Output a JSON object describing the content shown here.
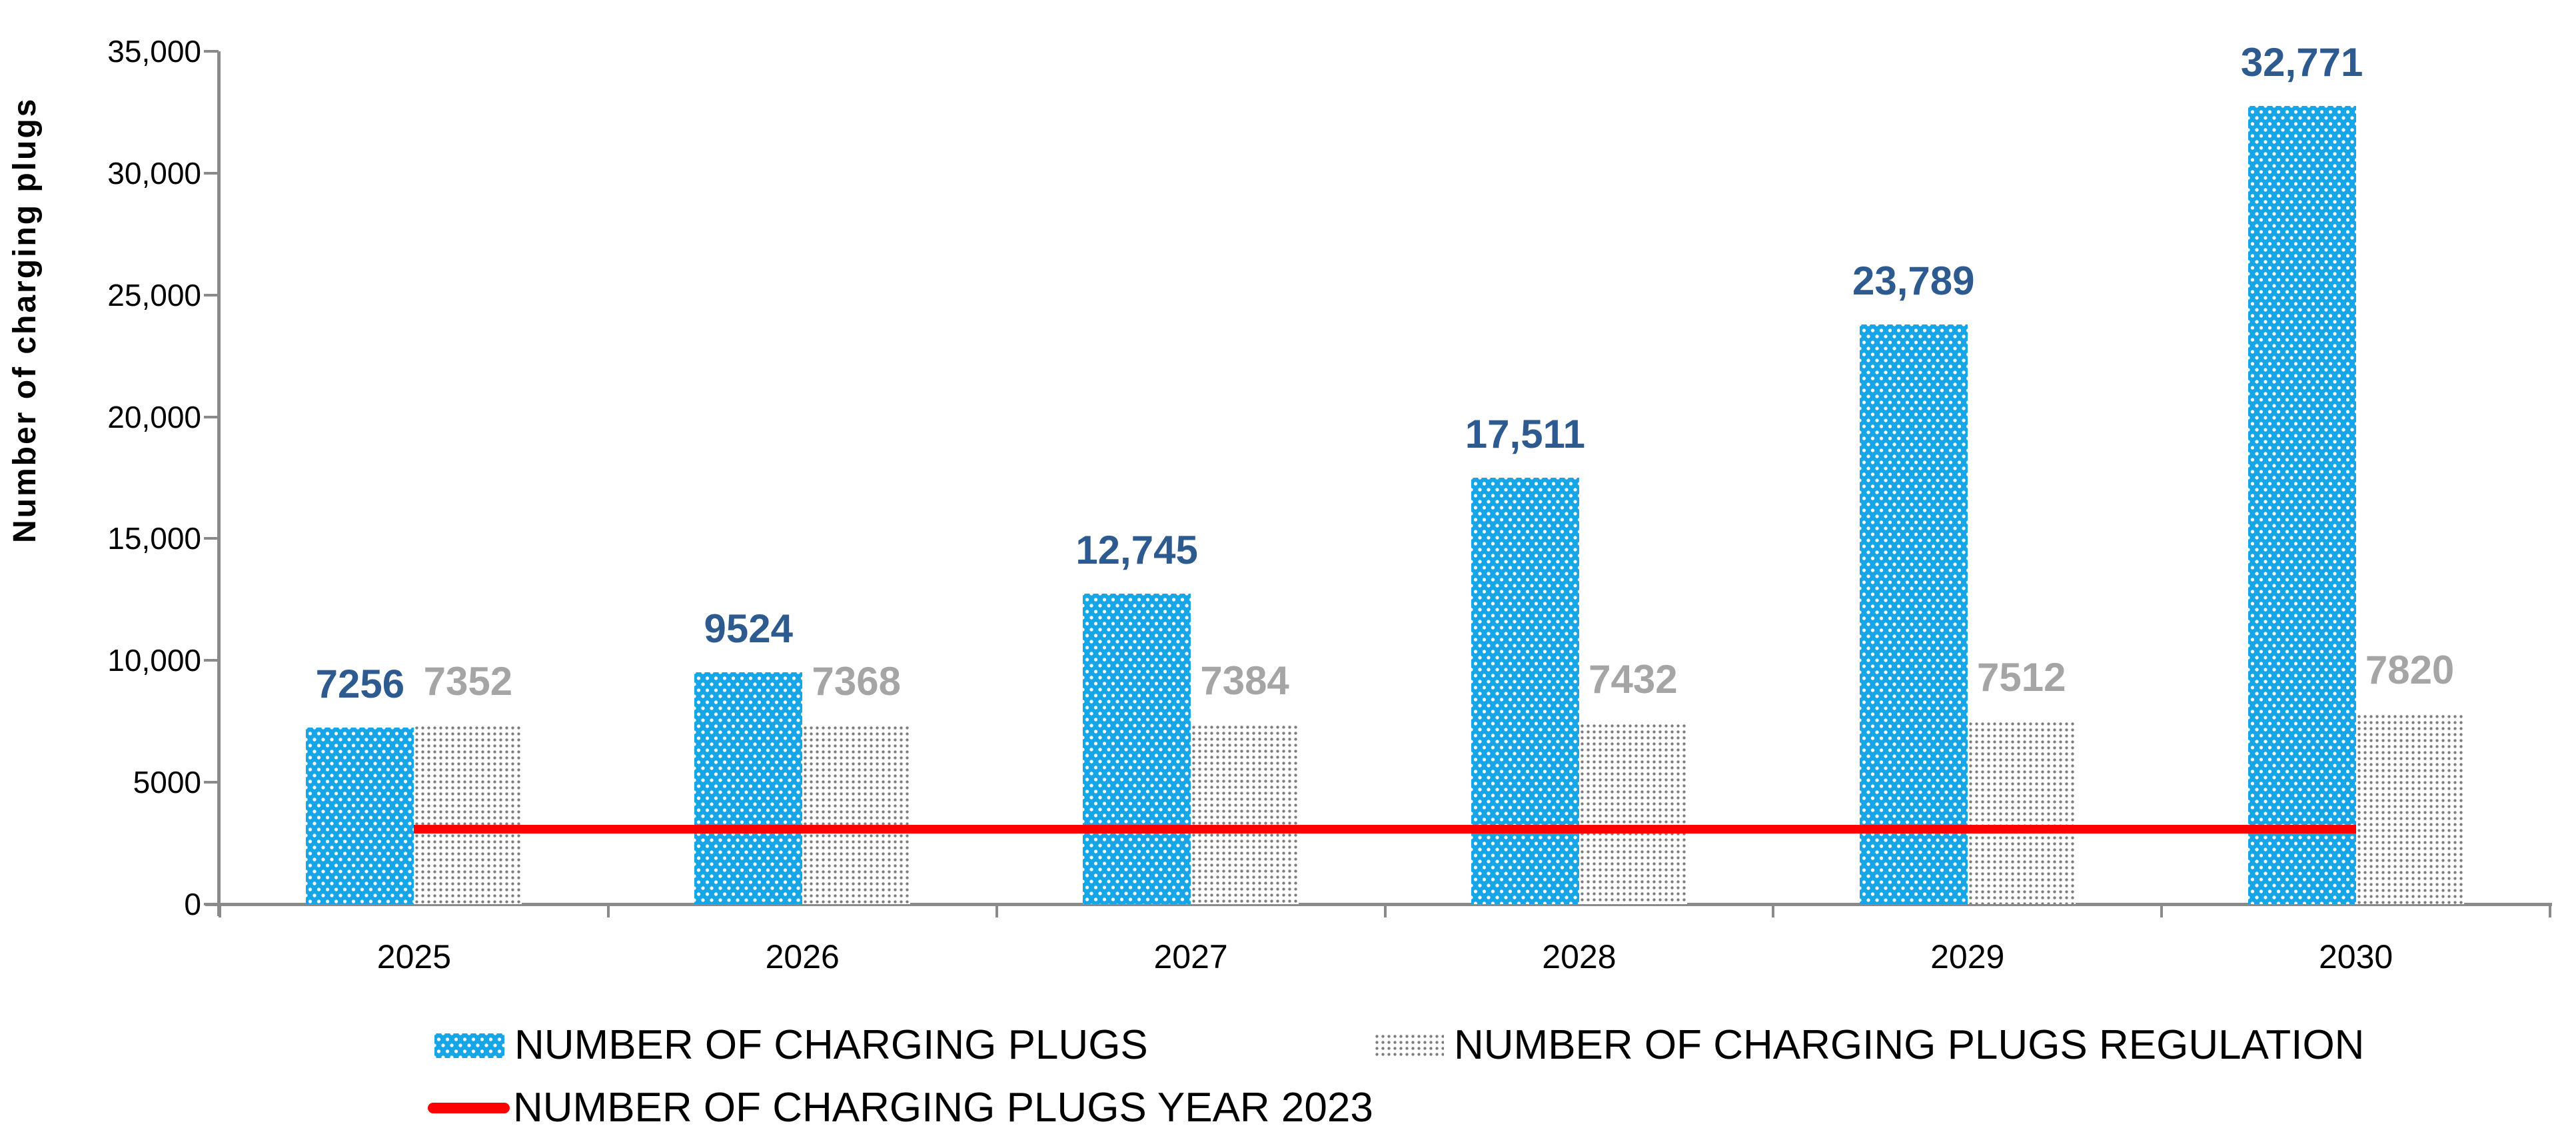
{
  "chart_data": {
    "type": "bar",
    "title": "",
    "xlabel": "",
    "ylabel": "Number of charging plugs",
    "ylim": [
      0,
      35000
    ],
    "grid": false,
    "legend_position": "bottom-left",
    "y_ticks": [
      {
        "value": 0,
        "label": "0"
      },
      {
        "value": 5000,
        "label": "5000"
      },
      {
        "value": 10000,
        "label": "10,000"
      },
      {
        "value": 15000,
        "label": "15,000"
      },
      {
        "value": 20000,
        "label": "20,000"
      },
      {
        "value": 25000,
        "label": "25,000"
      },
      {
        "value": 30000,
        "label": "30,000"
      },
      {
        "value": 35000,
        "label": "35,000"
      }
    ],
    "categories": [
      "2025",
      "2026",
      "2027",
      "2028",
      "2029",
      "2030"
    ],
    "series": [
      {
        "name": "NUMBER OF CHARGING PLUGS",
        "type": "bar",
        "fill": "blue-dotted",
        "values": [
          7256,
          9524,
          12745,
          17511,
          23789,
          32771
        ],
        "labels": [
          "7256",
          "9524",
          "12,745",
          "17,511",
          "23,789",
          "32,771"
        ]
      },
      {
        "name": "NUMBER OF CHARGING PLUGS REGULATION",
        "type": "bar",
        "fill": "gray-dotted",
        "values": [
          7352,
          7368,
          7384,
          7432,
          7512,
          7820
        ],
        "labels": [
          "7352",
          "7368",
          "7384",
          "7432",
          "7512",
          "7820"
        ]
      },
      {
        "name": "NUMBER OF CHARGING PLUGS YEAR 2023",
        "type": "line",
        "value_estimated": 3080
      }
    ],
    "colors": {
      "bar_blue": "#16A5E6",
      "bar_gray_dots": "#7C7C7C",
      "data_label_blue": "#2E5B8F",
      "data_label_gray": "#A5A5A5",
      "reference_line_red": "#FF0000",
      "axis_gray": "#8A8A8A",
      "text_black": "#000000"
    }
  },
  "legend": {
    "items": [
      {
        "label": "NUMBER OF CHARGING PLUGS"
      },
      {
        "label": "NUMBER OF CHARGING PLUGS REGULATION"
      },
      {
        "label": "NUMBER OF CHARGING PLUGS YEAR 2023"
      }
    ]
  }
}
